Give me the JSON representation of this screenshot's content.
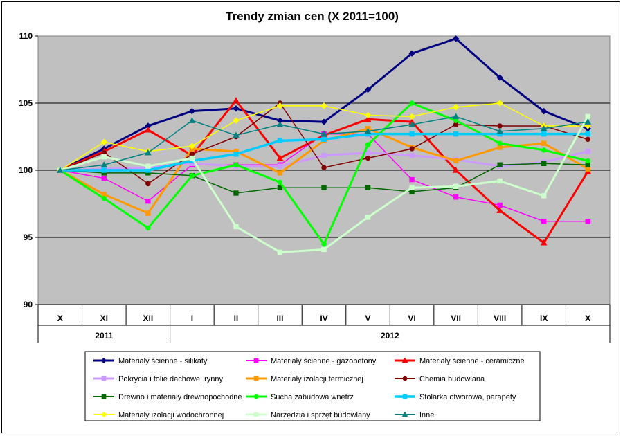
{
  "chart_data": {
    "type": "line",
    "title": "Trendy zmian cen (X 2011=100)",
    "ylim": [
      90,
      110
    ],
    "yticks": [
      "90",
      "95",
      "100",
      "105",
      "110"
    ],
    "categories": [
      "X",
      "XI",
      "XII",
      "I",
      "II",
      "III",
      "IV",
      "V",
      "VI",
      "VII",
      "VIII",
      "IX",
      "X"
    ],
    "year_labels": [
      "2011",
      "2012"
    ],
    "grid": true,
    "legend_position": "bottom",
    "plot_background": "#c0c0c0",
    "series": [
      {
        "name": "Materiały ścienne - silikaty",
        "color": "#000080",
        "marker": "diamond",
        "width": 3,
        "values": [
          100,
          101.6,
          103.3,
          104.4,
          104.6,
          103.7,
          103.6,
          106.0,
          108.7,
          109.8,
          106.9,
          104.4,
          103.1
        ]
      },
      {
        "name": "Materiały ścienne - gazobetony",
        "color": "#ff00ff",
        "marker": "square",
        "width": 1.5,
        "values": [
          100,
          99.4,
          97.7,
          100.4,
          100.4,
          100.4,
          102.7,
          102.7,
          99.3,
          98.0,
          97.4,
          96.2,
          96.2
        ]
      },
      {
        "name": "Materiały ścienne - ceramiczne",
        "color": "#ff0000",
        "marker": "triangle",
        "width": 3,
        "values": [
          100,
          101.4,
          103.0,
          101.1,
          105.2,
          100.9,
          102.6,
          103.8,
          103.6,
          100.0,
          97.0,
          94.6,
          99.9
        ]
      },
      {
        "name": "Pokrycia i folie dachowe, rynny",
        "color": "#cc99ff",
        "marker": "square",
        "width": 3,
        "values": [
          100,
          100.1,
          100.2,
          100.5,
          100.3,
          100.3,
          101.1,
          101.3,
          101.1,
          100.8,
          100.3,
          100.6,
          101.4
        ]
      },
      {
        "name": "Materiały izolacji termicznej",
        "color": "#ff9900",
        "marker": "square",
        "width": 3,
        "values": [
          100,
          98.2,
          96.8,
          101.6,
          101.4,
          99.8,
          102.2,
          103.1,
          101.7,
          100.7,
          101.7,
          102.0,
          100.1
        ]
      },
      {
        "name": "Chemia budowlana",
        "color": "#800000",
        "marker": "circle",
        "width": 1.5,
        "values": [
          100,
          101.3,
          99.0,
          101.2,
          102.5,
          105.0,
          100.2,
          100.9,
          101.6,
          103.4,
          103.3,
          103.3,
          102.3
        ]
      },
      {
        "name": "Drewno i materiały drewnopochodne",
        "color": "#006600",
        "marker": "square",
        "width": 1.5,
        "values": [
          100,
          99.8,
          99.8,
          99.6,
          98.3,
          98.7,
          98.7,
          98.7,
          98.4,
          98.7,
          100.4,
          100.5,
          100.4
        ]
      },
      {
        "name": "Sucha zabudowa wnętrz",
        "color": "#00ff00",
        "marker": "circle",
        "width": 3,
        "values": [
          100,
          97.9,
          95.7,
          99.6,
          100.4,
          99.1,
          94.5,
          101.9,
          105.0,
          103.7,
          102.0,
          101.5,
          100.7
        ]
      },
      {
        "name": "Stolarka otworowa, parapety",
        "color": "#00ccff",
        "marker": "square",
        "width": 3.5,
        "values": [
          100,
          100.0,
          100.0,
          100.7,
          101.2,
          102.2,
          102.3,
          102.7,
          102.7,
          102.7,
          102.7,
          102.7,
          102.7
        ]
      },
      {
        "name": "Materiały izolacji wodochronnej",
        "color": "#ffff00",
        "marker": "diamond",
        "width": 1.5,
        "values": [
          100,
          102.1,
          101.4,
          101.8,
          103.7,
          104.8,
          104.8,
          104.1,
          104.0,
          104.7,
          105.0,
          103.3,
          103.3
        ]
      },
      {
        "name": "Narzędzia i sprzęt budowlany",
        "color": "#ccffcc",
        "marker": "square",
        "width": 3,
        "values": [
          100,
          101.0,
          100.3,
          100.9,
          95.8,
          93.9,
          94.1,
          96.5,
          98.7,
          98.8,
          99.2,
          98.1,
          104.0
        ]
      },
      {
        "name": "Inne",
        "color": "#008080",
        "marker": "triangle",
        "width": 1.5,
        "values": [
          100,
          100.4,
          101.3,
          103.7,
          102.6,
          103.4,
          102.7,
          102.9,
          103.4,
          104.0,
          102.9,
          103.1,
          103.6
        ]
      }
    ]
  }
}
